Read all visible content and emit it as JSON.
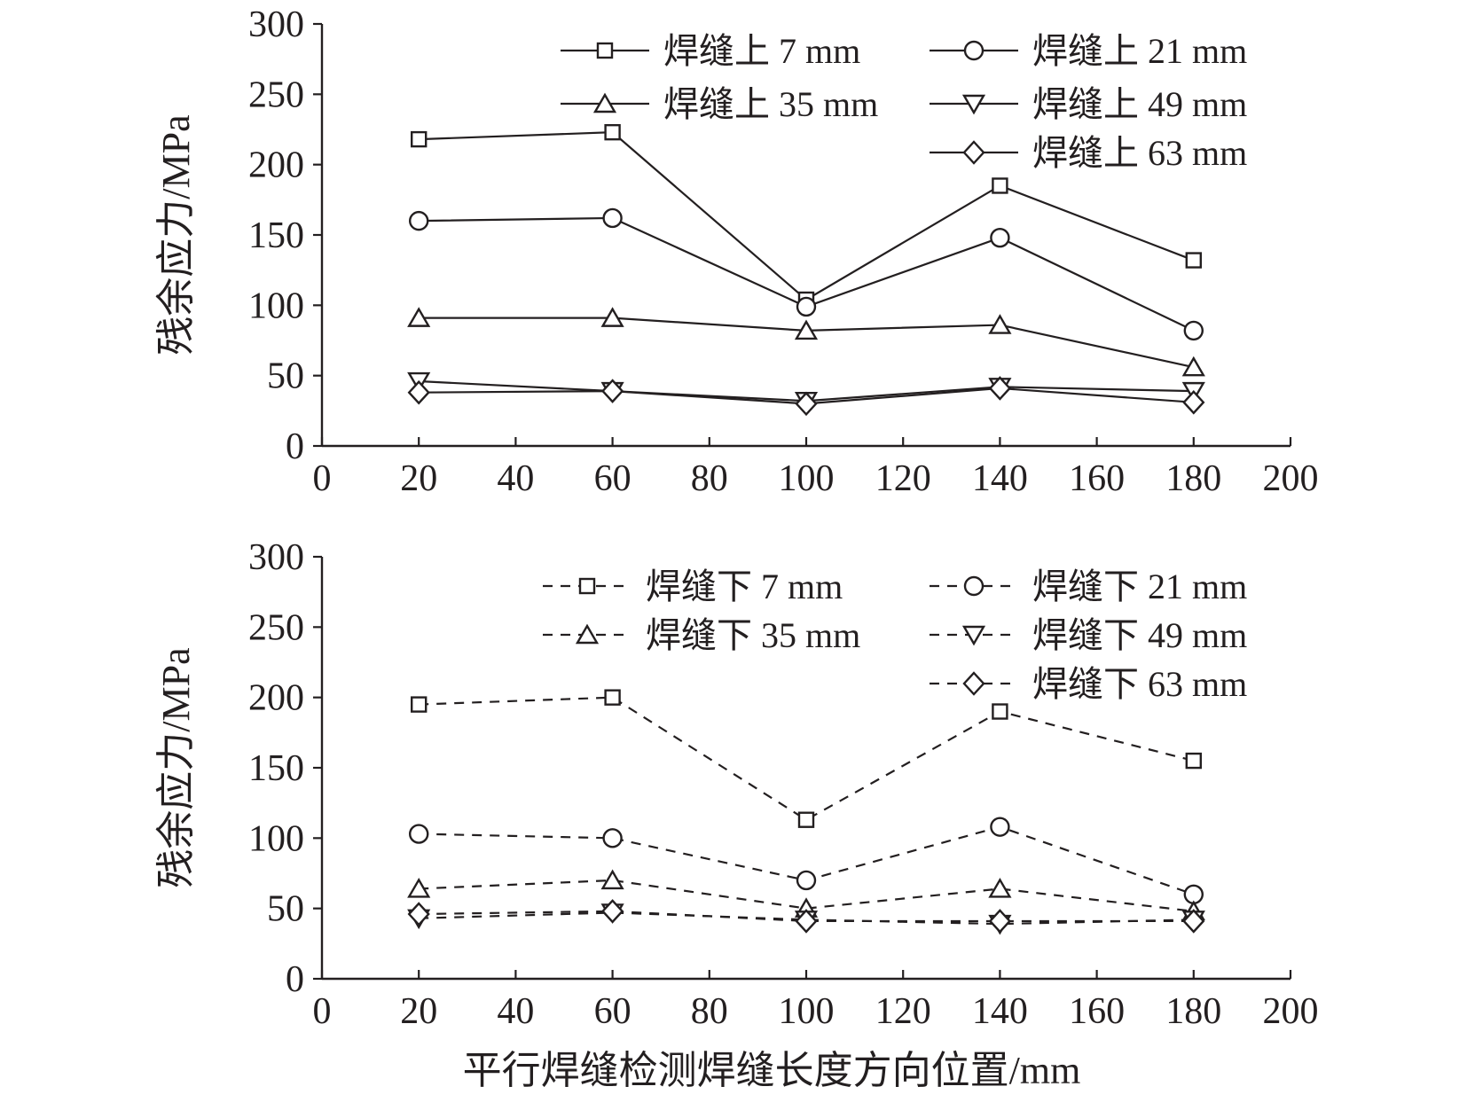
{
  "chart_data": [
    {
      "type": "line",
      "ylabel": "残余应力/MPa",
      "xlabel": "",
      "xlim": [
        0,
        200
      ],
      "ylim": [
        0,
        300
      ],
      "xticks": [
        "0",
        "20",
        "40",
        "60",
        "80",
        "100",
        "120",
        "140",
        "160",
        "180",
        "200"
      ],
      "yticks": [
        "0",
        "50",
        "100",
        "150",
        "200",
        "250",
        "300"
      ],
      "grid": false,
      "legend": "top-right",
      "line_style": "solid",
      "x": [
        20,
        60,
        100,
        140,
        180
      ],
      "series": [
        {
          "name": "焊缝上 7 mm",
          "marker": "square",
          "values": [
            218,
            223,
            104,
            185,
            132
          ]
        },
        {
          "name": "焊缝上 21 mm",
          "marker": "circle",
          "values": [
            160,
            162,
            99,
            148,
            82
          ]
        },
        {
          "name": "焊缝上 35 mm",
          "marker": "triangle-up",
          "values": [
            91,
            91,
            82,
            86,
            56
          ]
        },
        {
          "name": "焊缝上 49 mm",
          "marker": "triangle-down",
          "values": [
            46,
            39,
            32,
            42,
            39
          ]
        },
        {
          "name": "焊缝上 63 mm",
          "marker": "diamond",
          "values": [
            38,
            39,
            30,
            41,
            31
          ]
        }
      ]
    },
    {
      "type": "line",
      "ylabel": "残余应力/MPa",
      "xlabel": "平行焊缝检测焊缝长度方向位置/mm",
      "xlim": [
        0,
        200
      ],
      "ylim": [
        0,
        300
      ],
      "xticks": [
        "0",
        "20",
        "40",
        "60",
        "80",
        "100",
        "120",
        "140",
        "160",
        "180",
        "200"
      ],
      "yticks": [
        "0",
        "50",
        "100",
        "150",
        "200",
        "250",
        "300"
      ],
      "grid": false,
      "legend": "top-right",
      "line_style": "dashed",
      "x": [
        20,
        60,
        100,
        140,
        180
      ],
      "series": [
        {
          "name": "焊缝下 7 mm",
          "marker": "square",
          "values": [
            195,
            200,
            113,
            190,
            155
          ]
        },
        {
          "name": "焊缝下 21 mm",
          "marker": "circle",
          "values": [
            103,
            100,
            70,
            108,
            60
          ]
        },
        {
          "name": "焊缝下 35 mm",
          "marker": "triangle-up",
          "values": [
            64,
            70,
            50,
            64,
            48
          ]
        },
        {
          "name": "焊缝下 49 mm",
          "marker": "triangle-down",
          "values": [
            43,
            47,
            42,
            39,
            42
          ]
        },
        {
          "name": "焊缝下 63 mm",
          "marker": "diamond",
          "values": [
            46,
            48,
            41,
            41,
            41
          ]
        }
      ]
    }
  ]
}
